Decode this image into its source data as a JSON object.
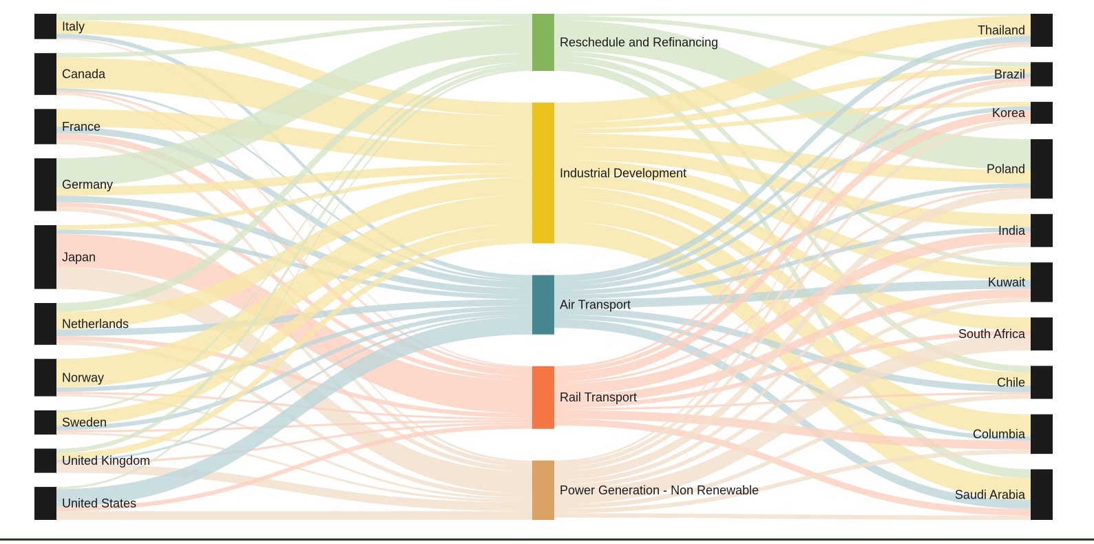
{
  "chart_data": {
    "type": "sankey",
    "columns": [
      [
        "Italy",
        "Canada",
        "France",
        "Germany",
        "Japan",
        "Netherlands",
        "Norway",
        "Sweden",
        "United Kingdom",
        "United States"
      ],
      [
        "Reschedule and Refinancing",
        "Industrial Development",
        "Air Transport",
        "Rail Transport",
        "Power Generation - Non Renewable"
      ],
      [
        "Thailand",
        "Brazil",
        "Korea",
        "Poland",
        "India",
        "Kuwait",
        "South Africa",
        "Chile",
        "Columbia",
        "Saudi Arabia"
      ]
    ],
    "sector_colors": {
      "Reschedule and Refinancing": "#86b45b",
      "Industrial Development": "#ecc31e",
      "Air Transport": "#478890",
      "Rail Transport": "#f47642",
      "Power Generation - Non Renewable": "#dba265"
    },
    "link_colors": {
      "Reschedule and Refinancing": "#d6e5c7",
      "Industrial Development": "#f8e6a6",
      "Air Transport": "#bdd6da",
      "Rail Transport": "#fccfbf",
      "Power Generation - Non Renewable": "#f2dfcb"
    },
    "node_color": "#1b1b1b",
    "flows": [
      {
        "source": "Italy",
        "target": "Reschedule and Refinancing",
        "value": 3
      },
      {
        "source": "Italy",
        "target": "Industrial Development",
        "value": 6
      },
      {
        "source": "Italy",
        "target": "Air Transport",
        "value": 2
      },
      {
        "source": "Italy",
        "target": "Rail Transport",
        "value": 0.5
      },
      {
        "source": "Canada",
        "target": "Reschedule and Refinancing",
        "value": 2
      },
      {
        "source": "Canada",
        "target": "Industrial Development",
        "value": 14
      },
      {
        "source": "Canada",
        "target": "Air Transport",
        "value": 1
      },
      {
        "source": "Canada",
        "target": "Rail Transport",
        "value": 1
      },
      {
        "source": "Canada",
        "target": "Power Generation - Non Renewable",
        "value": 1
      },
      {
        "source": "France",
        "target": "Industrial Development",
        "value": 8
      },
      {
        "source": "France",
        "target": "Air Transport",
        "value": 3
      },
      {
        "source": "France",
        "target": "Rail Transport",
        "value": 3
      },
      {
        "source": "France",
        "target": "Power Generation - Non Renewable",
        "value": 2
      },
      {
        "source": "Germany",
        "target": "Reschedule and Refinancing",
        "value": 13
      },
      {
        "source": "Germany",
        "target": "Industrial Development",
        "value": 4
      },
      {
        "source": "Germany",
        "target": "Air Transport",
        "value": 3
      },
      {
        "source": "Germany",
        "target": "Rail Transport",
        "value": 2
      },
      {
        "source": "Germany",
        "target": "Power Generation - Non Renewable",
        "value": 2
      },
      {
        "source": "Japan",
        "target": "Industrial Development",
        "value": 2
      },
      {
        "source": "Japan",
        "target": "Air Transport",
        "value": 2
      },
      {
        "source": "Japan",
        "target": "Rail Transport",
        "value": 15
      },
      {
        "source": "Japan",
        "target": "Power Generation - Non Renewable",
        "value": 10
      },
      {
        "source": "Netherlands",
        "target": "Reschedule and Refinancing",
        "value": 4
      },
      {
        "source": "Netherlands",
        "target": "Industrial Development",
        "value": 8
      },
      {
        "source": "Netherlands",
        "target": "Air Transport",
        "value": 3
      },
      {
        "source": "Netherlands",
        "target": "Rail Transport",
        "value": 2
      },
      {
        "source": "Netherlands",
        "target": "Power Generation - Non Renewable",
        "value": 2
      },
      {
        "source": "Norway",
        "target": "Industrial Development",
        "value": 13
      },
      {
        "source": "Norway",
        "target": "Air Transport",
        "value": 2
      },
      {
        "source": "Norway",
        "target": "Rail Transport",
        "value": 1
      },
      {
        "source": "Norway",
        "target": "Power Generation - Non Renewable",
        "value": 1
      },
      {
        "source": "Sweden",
        "target": "Reschedule and Refinancing",
        "value": 1
      },
      {
        "source": "Sweden",
        "target": "Industrial Development",
        "value": 6
      },
      {
        "source": "Sweden",
        "target": "Air Transport",
        "value": 2
      },
      {
        "source": "Sweden",
        "target": "Rail Transport",
        "value": 1
      },
      {
        "source": "Sweden",
        "target": "Power Generation - Non Renewable",
        "value": 1
      },
      {
        "source": "United Kingdom",
        "target": "Reschedule and Refinancing",
        "value": 2
      },
      {
        "source": "United Kingdom",
        "target": "Industrial Development",
        "value": 3
      },
      {
        "source": "United Kingdom",
        "target": "Air Transport",
        "value": 1
      },
      {
        "source": "United Kingdom",
        "target": "Rail Transport",
        "value": 1
      },
      {
        "source": "United Kingdom",
        "target": "Power Generation - Non Renewable",
        "value": 4
      },
      {
        "source": "United States",
        "target": "Reschedule and Refinancing",
        "value": 1
      },
      {
        "source": "United States",
        "target": "Air Transport",
        "value": 8
      },
      {
        "source": "United States",
        "target": "Rail Transport",
        "value": 2
      },
      {
        "source": "United States",
        "target": "Power Generation - Non Renewable",
        "value": 4
      },
      {
        "source": "Reschedule and Refinancing",
        "target": "Thailand",
        "value": 1
      },
      {
        "source": "Reschedule and Refinancing",
        "target": "Brazil",
        "value": 2
      },
      {
        "source": "Reschedule and Refinancing",
        "target": "Poland",
        "value": 14
      },
      {
        "source": "Reschedule and Refinancing",
        "target": "Kuwait",
        "value": 2
      },
      {
        "source": "Reschedule and Refinancing",
        "target": "Chile",
        "value": 3
      },
      {
        "source": "Reschedule and Refinancing",
        "target": "Saudi Arabia",
        "value": 4
      },
      {
        "source": "Industrial Development",
        "target": "Thailand",
        "value": 9
      },
      {
        "source": "Industrial Development",
        "target": "Brazil",
        "value": 3
      },
      {
        "source": "Industrial Development",
        "target": "Korea",
        "value": 2
      },
      {
        "source": "Industrial Development",
        "target": "Poland",
        "value": 6
      },
      {
        "source": "Industrial Development",
        "target": "India",
        "value": 6
      },
      {
        "source": "Industrial Development",
        "target": "Kuwait",
        "value": 6
      },
      {
        "source": "Industrial Development",
        "target": "South Africa",
        "value": 6
      },
      {
        "source": "Industrial Development",
        "target": "Chile",
        "value": 6
      },
      {
        "source": "Industrial Development",
        "target": "Columbia",
        "value": 10
      },
      {
        "source": "Industrial Development",
        "target": "Saudi Arabia",
        "value": 10
      },
      {
        "source": "Air Transport",
        "target": "Thailand",
        "value": 3
      },
      {
        "source": "Air Transport",
        "target": "Brazil",
        "value": 2
      },
      {
        "source": "Air Transport",
        "target": "Korea",
        "value": 2
      },
      {
        "source": "Air Transport",
        "target": "Poland",
        "value": 2
      },
      {
        "source": "Air Transport",
        "target": "India",
        "value": 2
      },
      {
        "source": "Air Transport",
        "target": "Kuwait",
        "value": 4
      },
      {
        "source": "Air Transport",
        "target": "Chile",
        "value": 3
      },
      {
        "source": "Air Transport",
        "target": "Columbia",
        "value": 2
      },
      {
        "source": "Air Transport",
        "target": "Saudi Arabia",
        "value": 4
      },
      {
        "source": "Rail Transport",
        "target": "Thailand",
        "value": 1
      },
      {
        "source": "Rail Transport",
        "target": "Brazil",
        "value": 2
      },
      {
        "source": "Rail Transport",
        "target": "Korea",
        "value": 4
      },
      {
        "source": "Rail Transport",
        "target": "Poland",
        "value": 1
      },
      {
        "source": "Rail Transport",
        "target": "India",
        "value": 5
      },
      {
        "source": "Rail Transport",
        "target": "Kuwait",
        "value": 4
      },
      {
        "source": "Rail Transport",
        "target": "South Africa",
        "value": 2
      },
      {
        "source": "Rail Transport",
        "target": "Chile",
        "value": 1
      },
      {
        "source": "Rail Transport",
        "target": "Columbia",
        "value": 4
      },
      {
        "source": "Rail Transport",
        "target": "Saudi Arabia",
        "value": 3
      },
      {
        "source": "Power Generation - Non Renewable",
        "target": "Thailand",
        "value": 1
      },
      {
        "source": "Power Generation - Non Renewable",
        "target": "Brazil",
        "value": 2
      },
      {
        "source": "Power Generation - Non Renewable",
        "target": "Korea",
        "value": 2
      },
      {
        "source": "Power Generation - Non Renewable",
        "target": "Poland",
        "value": 4
      },
      {
        "source": "Power Generation - Non Renewable",
        "target": "India",
        "value": 2
      },
      {
        "source": "Power Generation - Non Renewable",
        "target": "Kuwait",
        "value": 2
      },
      {
        "source": "Power Generation - Non Renewable",
        "target": "South Africa",
        "value": 7
      },
      {
        "source": "Power Generation - Non Renewable",
        "target": "Chile",
        "value": 2
      },
      {
        "source": "Power Generation - Non Renewable",
        "target": "Columbia",
        "value": 2
      },
      {
        "source": "Power Generation - Non Renewable",
        "target": "Saudi Arabia",
        "value": 2
      }
    ]
  }
}
